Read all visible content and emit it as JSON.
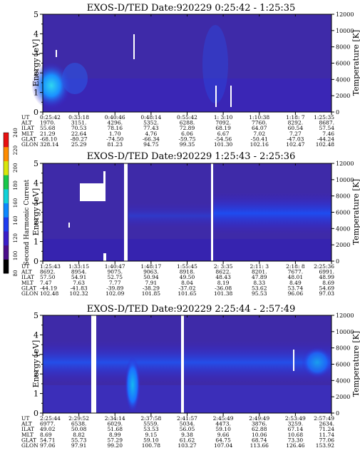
{
  "colorbar": {
    "label": "Second Harmonic Current",
    "ticks": [
      "80",
      "100",
      "120",
      "140",
      "160",
      "180",
      "200",
      "220",
      "240"
    ],
    "colors": [
      "#000000",
      "#4b0d8a",
      "#3a1ec8",
      "#1e3cf0",
      "#0d88ff",
      "#10d2d8",
      "#18c84a",
      "#d7e60a",
      "#ff8c00",
      "#e81010"
    ]
  },
  "chart_data": [
    {
      "type": "heatmap",
      "title": "EXOS-D/TED   Date:920229  0:25:42 - 1:25:35",
      "ylabel": "Energy [eV]",
      "y2label": "Temperature [K]",
      "yticks": [
        "0",
        "1",
        "2",
        "3",
        "4",
        "5"
      ],
      "y2ticks": [
        "0",
        "2000",
        "4000",
        "6000",
        "8000",
        "10000",
        "12000"
      ],
      "ylim": [
        0,
        5
      ],
      "y2lim": [
        0,
        12000
      ],
      "rows": [
        {
          "label": "UT",
          "values": [
            "0:25:42",
            "0:33:18",
            "0:40:46",
            "0:48:14",
            "0:55:42",
            "1: 3:10",
            "1:10:38",
            "1:18: 7",
            "1:25:35"
          ]
        },
        {
          "label": "ALT",
          "values": [
            "1970.",
            "3151.",
            "4296.",
            "5352.",
            "6288.",
            "7092.",
            "7760.",
            "8292.",
            "8687."
          ]
        },
        {
          "label": "ILAT",
          "values": [
            "55.68",
            "70.53",
            "78.16",
            "77.43",
            "72.89",
            "68.19",
            "64.07",
            "60.54",
            "57.54"
          ]
        },
        {
          "label": "MLT",
          "values": [
            "21.29",
            "22.64",
            "1.70",
            "4.76",
            "6.06",
            "6.67",
            "7.02",
            "7.27",
            "7.46"
          ]
        },
        {
          "label": "GLAT",
          "values": [
            "-68.10",
            "-80.27",
            "-74.50",
            "-66.34",
            "-59.75",
            "-54.56",
            "-50.41",
            "-47.03",
            "-44.24"
          ]
        },
        {
          "label": "GLON",
          "values": [
            "328.14",
            "25.29",
            "81.23",
            "94.75",
            "99.35",
            "101.30",
            "102.16",
            "102.47",
            "102.48"
          ]
        }
      ]
    },
    {
      "type": "heatmap",
      "title": "EXOS-D/TED   Date:920229  1:25:43 - 2:25:36",
      "ylabel": "Energy [eV]",
      "y2label": "Temperature [K]",
      "yticks": [
        "0",
        "1",
        "2",
        "3",
        "4",
        "5"
      ],
      "y2ticks": [
        "0",
        "2000",
        "4000",
        "6000",
        "8000",
        "10000",
        "12000"
      ],
      "ylim": [
        0,
        5
      ],
      "y2lim": [
        0,
        12000
      ],
      "rows": [
        {
          "label": "UT",
          "values": [
            "1:25:43",
            "1:33:15",
            "1:40:47",
            "1:48:17",
            "1:55:45",
            "2: 3:35",
            "2:11: 3",
            "2:18: 8",
            "2:25:36"
          ]
        },
        {
          "label": "ALT",
          "values": [
            "8692.",
            "8954.",
            "9075.",
            "9063.",
            "8918.",
            "8622.",
            "8201.",
            "7677.",
            "6991."
          ]
        },
        {
          "label": "ILAT",
          "values": [
            "57.50",
            "54.91",
            "52.75",
            "50.94",
            "49.50",
            "48.43",
            "47.89",
            "48.01",
            "48.99"
          ]
        },
        {
          "label": "MLT",
          "values": [
            "7.47",
            "7.63",
            "7.77",
            "7.91",
            "8.04",
            "8.19",
            "8.33",
            "8.49",
            "8.69"
          ]
        },
        {
          "label": "GLAT",
          "values": [
            "-44.19",
            "-41.83",
            "-39.89",
            "-38.29",
            "-37.02",
            "-36.08",
            "53.62",
            "53.74",
            "54.69"
          ]
        },
        {
          "label": "GLON",
          "values": [
            "102.48",
            "102.32",
            "102.09",
            "101.85",
            "101.65",
            "101.38",
            "95.53",
            "96.06",
            "97.03"
          ]
        }
      ]
    },
    {
      "type": "heatmap",
      "title": "EXOS-D/TED   Date:920229  2:25:44 - 2:57:49",
      "ylabel": "Energy [eV]",
      "y2label": "Temperature [K]",
      "yticks": [
        "0",
        "1",
        "2",
        "3",
        "4",
        "5"
      ],
      "y2ticks": [
        "0",
        "2000",
        "4000",
        "6000",
        "8000",
        "10000",
        "12000"
      ],
      "ylim": [
        0,
        5
      ],
      "y2lim": [
        0,
        12000
      ],
      "rows": [
        {
          "label": "UT",
          "values": [
            "2:25:44",
            "2:29:52",
            "2:34:14",
            "2:37:58",
            "2:41:57",
            "2:45:49",
            "2:49:49",
            "2:53:49",
            "2:57:49"
          ]
        },
        {
          "label": "ALT",
          "values": [
            "6977.",
            "6538.",
            "6029.",
            "5559.",
            "5034.",
            "4473.",
            "3876.",
            "3259.",
            "2634."
          ]
        },
        {
          "label": "ILAT",
          "values": [
            "49.02",
            "50.08",
            "51.68",
            "53.53",
            "56.05",
            "59.10",
            "62.88",
            "67.14",
            "71.24"
          ]
        },
        {
          "label": "MLT",
          "values": [
            "8.69",
            "8.82",
            "8.99",
            "9.15",
            "9.38",
            "9.66",
            "10.06",
            "10.68",
            "11.74"
          ]
        },
        {
          "label": "GLAT",
          "values": [
            "54.71",
            "55.73",
            "57.29",
            "59.10",
            "61.62",
            "64.75",
            "68.74",
            "73.30",
            "77.06"
          ]
        },
        {
          "label": "GLON",
          "values": [
            "97.06",
            "97.91",
            "99.20",
            "100.78",
            "103.27",
            "107.04",
            "113.66",
            "126.46",
            "153.92"
          ]
        }
      ]
    }
  ]
}
